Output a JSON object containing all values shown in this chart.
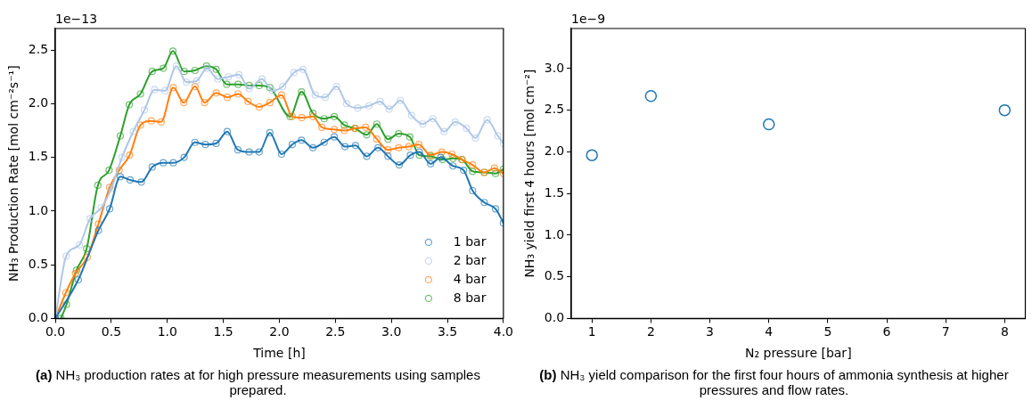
{
  "chart_data": [
    {
      "type": "line",
      "xlabel": "Time [h]",
      "ylabel": "NH₃ Production Rate [mol cm⁻²s⁻¹]",
      "xlim": [
        0,
        4.0
      ],
      "xticks": [
        {
          "value": 0,
          "label": "0.0"
        },
        {
          "value": 0.5,
          "label": "0.5"
        },
        {
          "value": 1,
          "label": "1.0"
        },
        {
          "value": 1.5,
          "label": "1.5"
        },
        {
          "value": 2,
          "label": "2.0"
        },
        {
          "value": 2.5,
          "label": "2.5"
        },
        {
          "value": 3,
          "label": "3.0"
        },
        {
          "value": 3.5,
          "label": "3.5"
        },
        {
          "value": 4,
          "label": "4.0"
        }
      ],
      "ylim": [
        0,
        2.7
      ],
      "yticks": [
        {
          "value": 0,
          "label": "0.0"
        },
        {
          "value": 0.5,
          "label": "0.5"
        },
        {
          "value": 1,
          "label": "1.0"
        },
        {
          "value": 1.5,
          "label": "1.5"
        },
        {
          "value": 2,
          "label": "2.0"
        },
        {
          "value": 2.5,
          "label": "2.5"
        }
      ],
      "marker": "circle",
      "legend": "bottom right",
      "annotations": [
        "1e−13",
        "(a) NH₃ production rates at for high pressure measurements using samples prepared."
      ],
      "series": [
        {
          "name": "1 bar",
          "color": "#1f77b4",
          "x": [
            0,
            0.205,
            0.385,
            0.485,
            0.58,
            0.668,
            0.768,
            0.865,
            0.964,
            1.053,
            1.15,
            1.246,
            1.34,
            1.435,
            1.535,
            1.63,
            1.73,
            1.82,
            1.915,
            2.02,
            2.115,
            2.198,
            2.3,
            2.4,
            2.49,
            2.586,
            2.68,
            2.78,
            2.88,
            2.97,
            3.07,
            3.17,
            3.25,
            3.35,
            3.44,
            3.55,
            3.645,
            3.725,
            3.83,
            3.93,
            4.0
          ],
          "values": [
            0,
            0.36,
            0.82,
            1.02,
            1.32,
            1.29,
            1.27,
            1.41,
            1.45,
            1.45,
            1.5,
            1.64,
            1.62,
            1.63,
            1.74,
            1.57,
            1.55,
            1.55,
            1.73,
            1.53,
            1.62,
            1.66,
            1.59,
            1.64,
            1.69,
            1.6,
            1.61,
            1.51,
            1.59,
            1.51,
            1.43,
            1.52,
            1.55,
            1.44,
            1.5,
            1.42,
            1.38,
            1.19,
            1.08,
            1.02,
            0.89
          ]
        },
        {
          "name": "2 bar",
          "color": "#aec7e8",
          "x": [
            0,
            0.097,
            0.215,
            0.31,
            0.41,
            0.5,
            0.595,
            0.695,
            0.795,
            0.885,
            0.98,
            1.08,
            1.17,
            1.26,
            1.355,
            1.45,
            1.545,
            1.64,
            1.73,
            1.845,
            1.94,
            2.03,
            2.13,
            2.21,
            2.32,
            2.41,
            2.51,
            2.6,
            2.7,
            2.8,
            2.9,
            2.98,
            3.08,
            3.18,
            3.28,
            3.37,
            3.47,
            3.57,
            3.67,
            3.75,
            3.855,
            3.95,
            4.0
          ],
          "values": [
            0,
            0.58,
            0.685,
            0.93,
            1.03,
            1.21,
            1.5,
            1.74,
            1.94,
            2.13,
            2.12,
            2.35,
            2.2,
            2.21,
            2.33,
            2.23,
            2.25,
            2.27,
            2.14,
            2.23,
            2.12,
            2.16,
            2.29,
            2.32,
            2.08,
            2.06,
            2.16,
            2.0,
            1.96,
            1.98,
            2.02,
            1.95,
            2.03,
            1.89,
            1.81,
            1.86,
            1.74,
            1.83,
            1.77,
            1.68,
            1.85,
            1.7,
            1.63
          ]
        },
        {
          "name": "4 bar",
          "color": "#ff7f0e",
          "x": [
            0,
            0.094,
            0.18,
            0.285,
            0.385,
            0.485,
            0.57,
            0.663,
            0.76,
            0.857,
            0.945,
            1.053,
            1.147,
            1.247,
            1.333,
            1.436,
            1.535,
            1.632,
            1.72,
            1.82,
            1.915,
            2.02,
            2.115,
            2.2,
            2.3,
            2.38,
            2.49,
            2.58,
            2.675,
            2.77,
            2.87,
            2.97,
            3.065,
            3.155,
            3.245,
            3.35,
            3.45,
            3.54,
            3.63,
            3.725,
            3.83,
            3.92,
            4.0
          ],
          "values": [
            0,
            0.24,
            0.42,
            0.57,
            0.88,
            1.22,
            1.38,
            1.52,
            1.8,
            1.84,
            1.83,
            2.15,
            2.01,
            2.16,
            2.01,
            2.1,
            2.06,
            2.09,
            2.02,
            1.97,
            2.01,
            2.08,
            1.88,
            1.87,
            1.88,
            1.78,
            1.76,
            1.75,
            1.77,
            1.78,
            1.67,
            1.57,
            1.59,
            1.6,
            1.62,
            1.52,
            1.55,
            1.53,
            1.48,
            1.43,
            1.36,
            1.4,
            1.35
          ]
        },
        {
          "name": "8 bar",
          "color": "#2ca02c",
          "x": [
            0.05,
            0.1,
            0.19,
            0.28,
            0.38,
            0.48,
            0.58,
            0.66,
            0.76,
            0.865,
            0.964,
            1.05,
            1.15,
            1.247,
            1.35,
            1.436,
            1.53,
            1.632,
            1.73,
            1.82,
            1.915,
            2.095,
            2.198,
            2.3,
            2.4,
            2.49,
            2.58,
            2.675,
            2.78,
            2.87,
            2.97,
            3.065,
            3.165,
            3.25,
            3.35,
            3.455,
            3.55,
            3.63,
            3.725,
            3.83,
            3.93,
            4.0
          ],
          "values": [
            0,
            0.13,
            0.45,
            0.65,
            1.24,
            1.38,
            1.7,
            1.99,
            2.09,
            2.3,
            2.33,
            2.49,
            2.3,
            2.31,
            2.35,
            2.32,
            2.18,
            2.18,
            2.17,
            2.17,
            2.15,
            1.88,
            2.11,
            1.91,
            1.86,
            1.88,
            1.8,
            1.77,
            1.71,
            1.81,
            1.67,
            1.72,
            1.69,
            1.52,
            1.51,
            1.48,
            1.49,
            1.48,
            1.37,
            1.36,
            1.35,
            1.39
          ]
        }
      ]
    },
    {
      "type": "scatter",
      "xlabel": "N₂ pressure [bar]",
      "ylabel": "NH₃ yield first 4 hours [mol cm⁻²]",
      "xlim": [
        0.65,
        8.35
      ],
      "xticks": [
        1,
        2,
        3,
        4,
        5,
        6,
        7,
        8
      ],
      "ylim": [
        0,
        3.48
      ],
      "yticks": [
        {
          "value": 0,
          "label": "0.0"
        },
        {
          "value": 0.5,
          "label": "0.5"
        },
        {
          "value": 1,
          "label": "1.0"
        },
        {
          "value": 1.5,
          "label": "1.5"
        },
        {
          "value": 2,
          "label": "2.0"
        },
        {
          "value": 2.5,
          "label": "2.5"
        },
        {
          "value": 3,
          "label": "3.0"
        }
      ],
      "marker": "circle",
      "annotations": [
        "1e−9",
        "(b) NH₃ yield comparison for the first four hours of ammonia synthesis at higher pressures and flow rates."
      ],
      "series": [
        {
          "color": "#1f77b4",
          "x": [
            1,
            2,
            4,
            8
          ],
          "values": [
            1.96,
            2.67,
            2.33,
            2.5
          ]
        }
      ]
    }
  ]
}
